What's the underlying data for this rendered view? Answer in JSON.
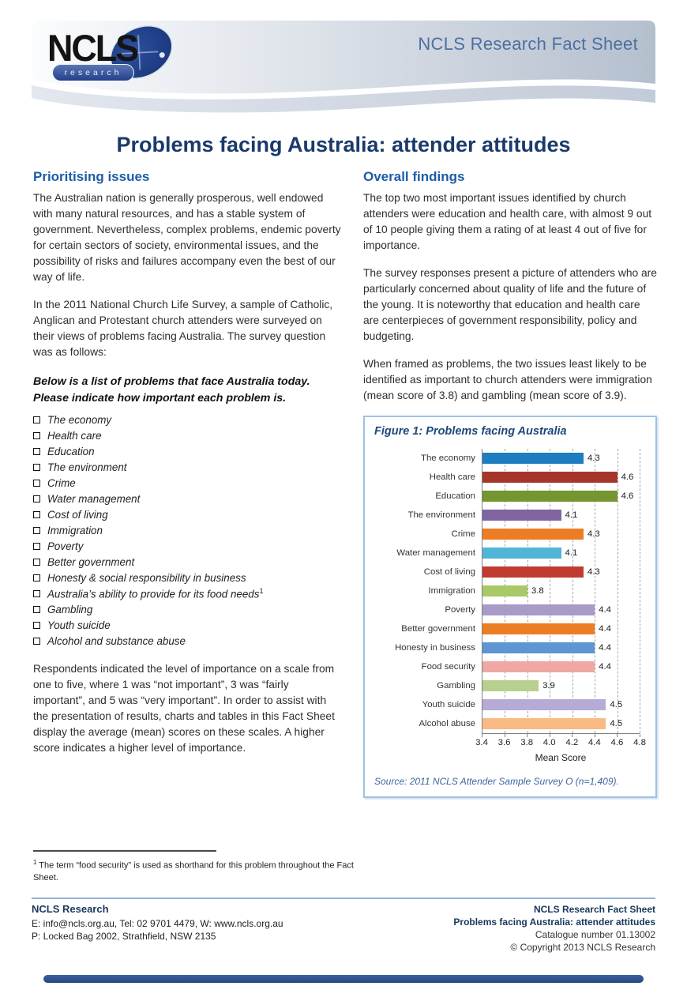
{
  "header": {
    "logo_text": "NCLS",
    "logo_subtext": "research",
    "fact_sheet_label": "NCLS Research Fact Sheet"
  },
  "page_title": "Problems facing Australia: attender attitudes",
  "left": {
    "heading": "Prioritising issues",
    "para1": "The Australian nation is generally prosperous, well endowed with many natural resources, and has a stable system of government. Nevertheless, complex problems, endemic poverty for certain sectors of society, environmental issues, and the possibility of risks and failures accompany even the best of our way of life.",
    "para2": "In the 2011 National Church Life Survey, a sample of Catholic, Anglican and Protestant church attenders were surveyed on their views of problems facing Australia.  The survey question was as follows:",
    "question": "Below is a list of problems that face Australia today. Please indicate how important each problem is.",
    "checklist": [
      {
        "label": "The economy",
        "sup": ""
      },
      {
        "label": "Health care",
        "sup": ""
      },
      {
        "label": "Education",
        "sup": ""
      },
      {
        "label": "The environment",
        "sup": ""
      },
      {
        "label": "Crime",
        "sup": ""
      },
      {
        "label": "Water management",
        "sup": ""
      },
      {
        "label": "Cost of living",
        "sup": ""
      },
      {
        "label": "Immigration",
        "sup": ""
      },
      {
        "label": "Poverty",
        "sup": ""
      },
      {
        "label": "Better government",
        "sup": ""
      },
      {
        "label": "Honesty & social responsibility in business",
        "sup": ""
      },
      {
        "label": "Australia’s ability to provide for its food needs",
        "sup": "1"
      },
      {
        "label": "Gambling",
        "sup": ""
      },
      {
        "label": "Youth suicide",
        "sup": ""
      },
      {
        "label": "Alcohol and substance abuse",
        "sup": ""
      }
    ],
    "para3": "Respondents indicated the level of importance on a scale from one to five, where 1 was “not important”, 3 was “fairly important”, and 5 was “very important”.  In order to assist with the presentation of results, charts and tables in this Fact Sheet display the average (mean) scores on these scales.  A higher score indicates a higher level of importance."
  },
  "right": {
    "heading": "Overall findings",
    "para1": "The top two most important issues identified by church attenders were education and health care, with almost 9 out of 10 people giving them a rating of at least 4 out of five for importance.",
    "para2": "The survey responses present a picture of attenders who are particularly concerned about quality of life and the future of the young. It is noteworthy that education and health care are centerpieces of government responsibility, policy and budgeting.",
    "para3": "When framed as problems, the two issues least likely to be identified as important to church attenders were immigration (mean score of 3.8) and gambling (mean score of 3.9)."
  },
  "figure": {
    "title": "Figure 1: Problems facing Australia",
    "source": "Source: 2011 NCLS Attender Sample Survey O (n=1,409)."
  },
  "chart_data": {
    "type": "bar",
    "orientation": "horizontal",
    "title": "Figure 1: Problems facing Australia",
    "categories": [
      "The economy",
      "Health care",
      "Education",
      "The environment",
      "Crime",
      "Water management",
      "Cost of living",
      "Immigration",
      "Poverty",
      "Better government",
      "Honesty in business",
      "Food security",
      "Gambling",
      "Youth suicide",
      "Alcohol abuse"
    ],
    "values": [
      4.3,
      4.6,
      4.6,
      4.1,
      4.3,
      4.1,
      4.3,
      3.8,
      4.4,
      4.4,
      4.4,
      4.4,
      3.9,
      4.5,
      4.5
    ],
    "bar_colors": [
      "#1e7cc1",
      "#a6362c",
      "#74952f",
      "#8064a2",
      "#ed7d23",
      "#4fb6d8",
      "#c13b30",
      "#a9c867",
      "#a89bc8",
      "#ed7d23",
      "#5d96d2",
      "#f0a8a4",
      "#b7cf8f",
      "#b5abd6",
      "#f9ba84"
    ],
    "xlabel": "Mean Score",
    "xlim": [
      3.4,
      4.8
    ],
    "xticks": [
      "3.4",
      "3.6",
      "3.8",
      "4.0",
      "4.2",
      "4.4",
      "4.6",
      "4.8"
    ],
    "grid": "vertical-dashed",
    "legend": "none",
    "value_labels": "end-of-bar"
  },
  "footnote": {
    "sup": "1",
    "text": " The term “food security” is used as shorthand for this problem throughout the Fact Sheet."
  },
  "footer": {
    "left": {
      "title": "NCLS Research",
      "line1": "E: info@ncls.org.au, Tel: 02 9701 4479, W: www.ncls.org.au",
      "line2": "P: Locked Bag 2002, Strathfield, NSW 2135"
    },
    "right": {
      "line1": "NCLS Research Fact Sheet",
      "line2": "Problems facing Australia: attender attitudes",
      "line3": "Catalogue number 01.13002",
      "line4": "© Copyright 2013 NCLS Research"
    }
  }
}
